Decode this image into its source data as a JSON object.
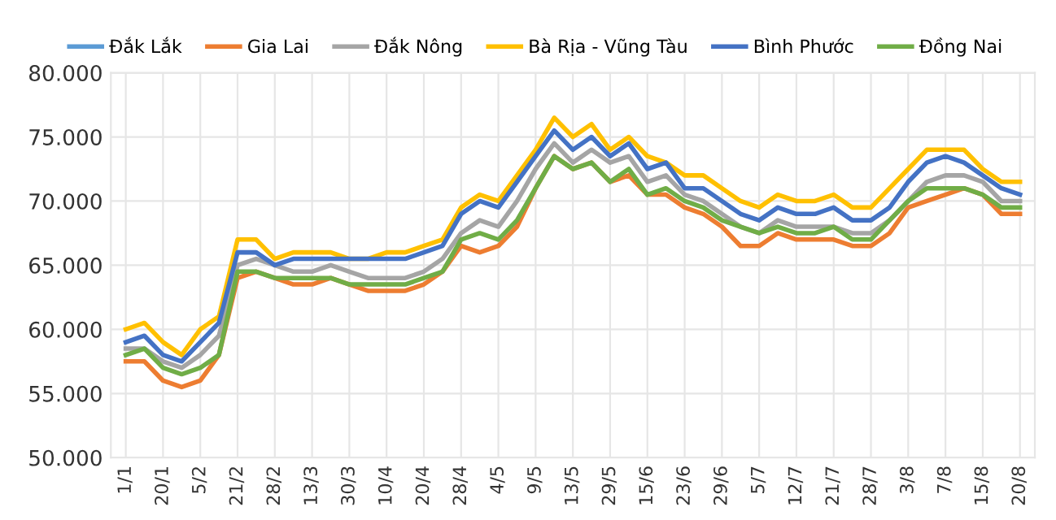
{
  "chart_data": {
    "type": "line",
    "categories": [
      "1/1",
      null,
      "20/1",
      null,
      "5/2",
      null,
      "21/2",
      null,
      "28/2",
      null,
      "13/3",
      null,
      "30/3",
      null,
      "10/4",
      null,
      "20/4",
      null,
      "28/4",
      null,
      "4/5",
      null,
      "9/5",
      null,
      "13/5",
      null,
      "29/5",
      null,
      "15/6",
      null,
      "23/6",
      null,
      "29/6",
      null,
      "5/7",
      null,
      "12/7",
      null,
      "21/7",
      null,
      "28/7",
      null,
      "3/8",
      null,
      "7/8",
      null,
      "15/8",
      null,
      "20/8"
    ],
    "series": [
      {
        "name": "Đắk Lắk",
        "color": "#5b9bd5",
        "values": [
          null,
          null,
          null,
          null,
          null,
          null,
          null,
          null,
          null,
          null,
          null,
          null,
          null,
          null,
          null,
          null,
          null,
          null,
          null,
          null,
          null,
          null,
          null,
          null,
          null,
          null,
          null,
          null,
          null,
          null,
          null,
          null,
          null,
          null,
          null,
          null,
          null,
          null,
          null,
          null,
          null,
          null,
          null,
          null,
          null,
          null,
          null,
          null,
          null
        ]
      },
      {
        "name": "Gia Lai",
        "color": "#ed7d31",
        "values": [
          57500,
          57500,
          56000,
          55500,
          56000,
          58000,
          64000,
          64500,
          64000,
          63500,
          63500,
          64000,
          63500,
          63000,
          63000,
          63000,
          63500,
          64500,
          66500,
          66000,
          66500,
          68000,
          71000,
          73500,
          72500,
          73000,
          71500,
          72000,
          70500,
          70500,
          69500,
          69000,
          68000,
          66500,
          66500,
          67500,
          67000,
          67000,
          67000,
          66500,
          66500,
          67500,
          69500,
          70000,
          70500,
          71000,
          70500,
          69000,
          69000
        ]
      },
      {
        "name": "Đắk Nông",
        "color": "#a5a5a5",
        "values": [
          58500,
          58500,
          57500,
          57000,
          58000,
          59500,
          65000,
          65500,
          65000,
          64500,
          64500,
          65000,
          64500,
          64000,
          64000,
          64000,
          64500,
          65500,
          67500,
          68500,
          68000,
          70000,
          72500,
          74500,
          73000,
          74000,
          73000,
          73500,
          71500,
          72000,
          70500,
          70000,
          69000,
          68000,
          67500,
          68500,
          68000,
          68000,
          68000,
          67500,
          67500,
          68500,
          70000,
          71500,
          72000,
          72000,
          71500,
          70000,
          70000
        ]
      },
      {
        "name": "Bà Rịa - Vũng Tàu",
        "color": "#ffc000",
        "values": [
          60000,
          60500,
          59000,
          58000,
          60000,
          61000,
          67000,
          67000,
          65500,
          66000,
          66000,
          66000,
          65500,
          65500,
          66000,
          66000,
          66500,
          67000,
          69500,
          70500,
          70000,
          72000,
          74000,
          76500,
          75000,
          76000,
          74000,
          75000,
          73500,
          73000,
          72000,
          72000,
          71000,
          70000,
          69500,
          70500,
          70000,
          70000,
          70500,
          69500,
          69500,
          71000,
          72500,
          74000,
          74000,
          74000,
          72500,
          71500,
          71500
        ]
      },
      {
        "name": "Bình Phước",
        "color": "#4472c4",
        "values": [
          59000,
          59500,
          58000,
          57500,
          59000,
          60500,
          66000,
          66000,
          65000,
          65500,
          65500,
          65500,
          65500,
          65500,
          65500,
          65500,
          66000,
          66500,
          69000,
          70000,
          69500,
          71500,
          73500,
          75500,
          74000,
          75000,
          73500,
          74500,
          72500,
          73000,
          71000,
          71000,
          70000,
          69000,
          68500,
          69500,
          69000,
          69000,
          69500,
          68500,
          68500,
          69500,
          71500,
          73000,
          73500,
          73000,
          72000,
          71000,
          70500
        ]
      },
      {
        "name": "Đồng Nai",
        "color": "#70ad47",
        "values": [
          58000,
          58500,
          57000,
          56500,
          57000,
          58000,
          64500,
          64500,
          64000,
          64000,
          64000,
          64000,
          63500,
          63500,
          63500,
          63500,
          64000,
          64500,
          67000,
          67500,
          67000,
          68500,
          71000,
          73500,
          72500,
          73000,
          71500,
          72500,
          70500,
          71000,
          70000,
          69500,
          68500,
          68000,
          67500,
          68000,
          67500,
          67500,
          68000,
          67000,
          67000,
          68500,
          70000,
          71000,
          71000,
          71000,
          70500,
          69500,
          69500
        ]
      }
    ],
    "ylim": [
      50000,
      80000
    ],
    "yticks": [
      {
        "value": 50000,
        "label": "50.000"
      },
      {
        "value": 55000,
        "label": "55.000"
      },
      {
        "value": 60000,
        "label": "60.000"
      },
      {
        "value": 65000,
        "label": "65.000"
      },
      {
        "value": 70000,
        "label": "70.000"
      },
      {
        "value": 75000,
        "label": "75.000"
      },
      {
        "value": 80000,
        "label": "80.000"
      }
    ],
    "grid": true,
    "legend": "top",
    "marker": "none",
    "line_style": "solid"
  }
}
